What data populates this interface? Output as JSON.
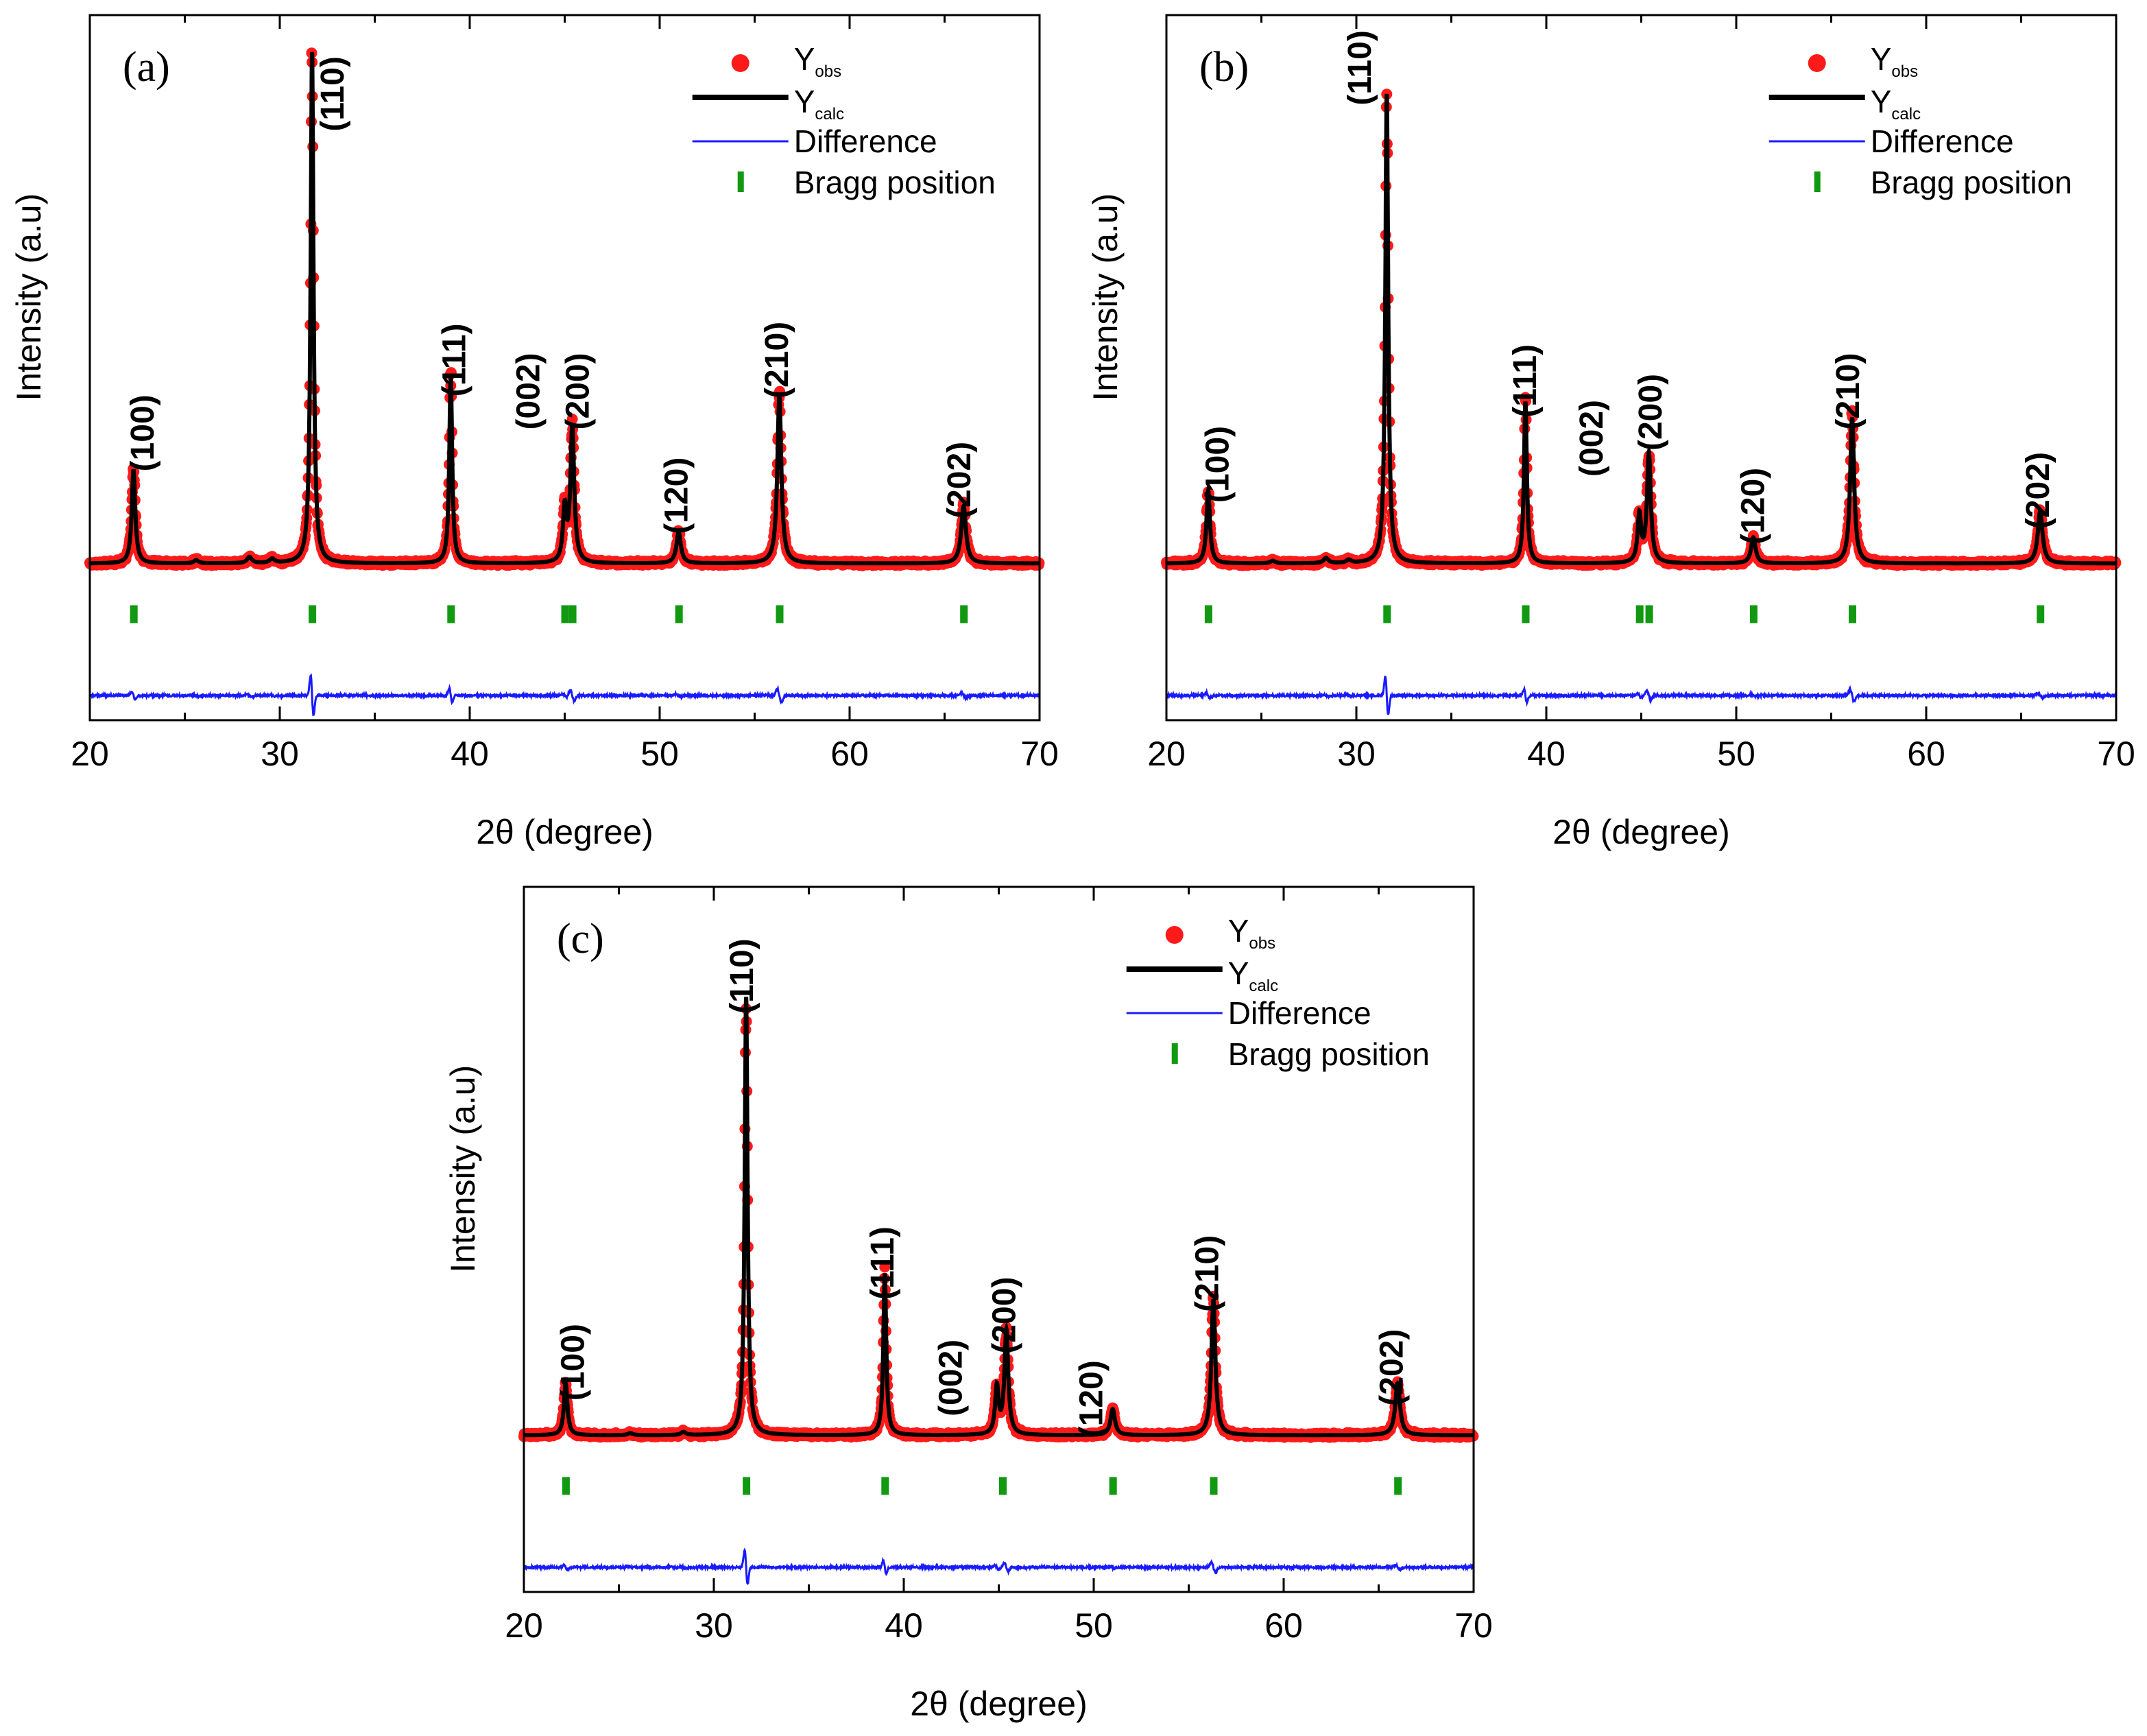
{
  "figure": {
    "x_axis_title": "2θ (degree)",
    "y_axis_title": "Intensity (a.u)",
    "legend": {
      "obs_label_main": "Y",
      "obs_label_sub": "obs",
      "calc_label_main": "Y",
      "calc_label_sub": "calc",
      "difference_label": "Difference",
      "bragg_label": "Bragg position"
    },
    "colors": {
      "observed": "#ff1a1a",
      "calculated": "#000000",
      "difference": "#1a1aff",
      "bragg": "#119911"
    }
  },
  "chart_data": [
    {
      "type": "line",
      "panel_label": "(a)",
      "xlabel": "2θ (degree)",
      "ylabel": "Intensity (a.u)",
      "xlim": [
        20,
        70
      ],
      "xticks": [
        "20",
        "30",
        "40",
        "50",
        "60",
        "70"
      ],
      "series": [
        {
          "name": "Yobs",
          "kind": "scatter",
          "color": "#ff1a1a"
        },
        {
          "name": "Ycalc",
          "kind": "line",
          "color": "#000000"
        },
        {
          "name": "Difference",
          "kind": "line",
          "color": "#1a1aff"
        },
        {
          "name": "Bragg position",
          "kind": "ticks",
          "color": "#119911"
        }
      ],
      "baseline": 0.03,
      "peaks": [
        {
          "label": "(100)",
          "pos": 22.3,
          "height": 0.18,
          "width": 0.22
        },
        {
          "label": "(110)",
          "pos": 31.7,
          "height": 0.98,
          "width": 0.18
        },
        {
          "label": "(111)",
          "pos": 39.0,
          "height": 0.36,
          "width": 0.18
        },
        {
          "label": "(002)",
          "pos": 45.0,
          "height": 0.1,
          "width": 0.22
        },
        {
          "label": "(200)",
          "pos": 45.4,
          "height": 0.26,
          "width": 0.24
        },
        {
          "label": "(120)",
          "pos": 51.0,
          "height": 0.06,
          "width": 0.28
        },
        {
          "label": "(210)",
          "pos": 56.3,
          "height": 0.32,
          "width": 0.25
        },
        {
          "label": "(202)",
          "pos": 66.0,
          "height": 0.11,
          "width": 0.3
        }
      ],
      "minor_peaks": [
        {
          "pos": 25.6,
          "height": 0.006
        },
        {
          "pos": 28.4,
          "height": 0.012
        },
        {
          "pos": 29.6,
          "height": 0.008
        }
      ],
      "bragg": [
        22.3,
        31.7,
        39.0,
        45.0,
        45.4,
        51.0,
        56.3,
        66.0
      ],
      "peak_annotations": [
        {
          "text": "(100)",
          "x": 22.9,
          "y": 0.28
        },
        {
          "text": "(110)",
          "x": 32.9,
          "y": 0.93
        },
        {
          "text": "(111)",
          "x": 39.3,
          "y": 0.42
        },
        {
          "text": "(002)",
          "x": 43.2,
          "y": 0.36
        },
        {
          "text": "(200)",
          "x": 45.8,
          "y": 0.36
        },
        {
          "text": "(120)",
          "x": 51.0,
          "y": 0.16
        },
        {
          "text": "(210)",
          "x": 56.3,
          "y": 0.42
        },
        {
          "text": "(202)",
          "x": 65.9,
          "y": 0.19
        }
      ]
    },
    {
      "type": "line",
      "panel_label": "(b)",
      "xlabel": "2θ (degree)",
      "ylabel": "Intensity (a.u)",
      "xlim": [
        20,
        70
      ],
      "xticks": [
        "20",
        "30",
        "40",
        "50",
        "60",
        "70"
      ],
      "series": [
        {
          "name": "Yobs",
          "kind": "scatter",
          "color": "#ff1a1a"
        },
        {
          "name": "Ycalc",
          "kind": "line",
          "color": "#000000"
        },
        {
          "name": "Difference",
          "kind": "line",
          "color": "#1a1aff"
        },
        {
          "name": "Bragg position",
          "kind": "ticks",
          "color": "#119911"
        }
      ],
      "baseline": 0.03,
      "peaks": [
        {
          "label": "(100)",
          "pos": 22.2,
          "height": 0.14,
          "width": 0.22
        },
        {
          "label": "(110)",
          "pos": 31.6,
          "height": 0.9,
          "width": 0.18
        },
        {
          "label": "(111)",
          "pos": 38.9,
          "height": 0.31,
          "width": 0.18
        },
        {
          "label": "(002)",
          "pos": 44.9,
          "height": 0.09,
          "width": 0.22
        },
        {
          "label": "(200)",
          "pos": 45.4,
          "height": 0.21,
          "width": 0.24
        },
        {
          "label": "(120)",
          "pos": 50.9,
          "height": 0.05,
          "width": 0.28
        },
        {
          "label": "(210)",
          "pos": 56.1,
          "height": 0.28,
          "width": 0.25
        },
        {
          "label": "(202)",
          "pos": 66.0,
          "height": 0.1,
          "width": 0.3
        }
      ],
      "minor_peaks": [
        {
          "pos": 25.6,
          "height": 0.005
        },
        {
          "pos": 28.4,
          "height": 0.01
        },
        {
          "pos": 29.6,
          "height": 0.006
        }
      ],
      "bragg": [
        22.2,
        31.6,
        38.9,
        44.9,
        45.4,
        50.9,
        56.1,
        66.0
      ],
      "peak_annotations": [
        {
          "text": "(100)",
          "x": 22.8,
          "y": 0.22
        },
        {
          "text": "(110)",
          "x": 30.3,
          "y": 0.98
        },
        {
          "text": "(111)",
          "x": 39.0,
          "y": 0.38
        },
        {
          "text": "(002)",
          "x": 42.5,
          "y": 0.27
        },
        {
          "text": "(200)",
          "x": 45.6,
          "y": 0.32
        },
        {
          "text": "(120)",
          "x": 51.0,
          "y": 0.14
        },
        {
          "text": "(210)",
          "x": 56.0,
          "y": 0.36
        },
        {
          "text": "(202)",
          "x": 66.0,
          "y": 0.17
        }
      ]
    },
    {
      "type": "line",
      "panel_label": "(c)",
      "xlabel": "2θ (degree)",
      "ylabel": "Intensity (a.u)",
      "xlim": [
        20,
        70
      ],
      "xticks": [
        "20",
        "30",
        "40",
        "50",
        "60",
        "70"
      ],
      "series": [
        {
          "name": "Yobs",
          "kind": "scatter",
          "color": "#ff1a1a"
        },
        {
          "name": "Ycalc",
          "kind": "line",
          "color": "#000000"
        },
        {
          "name": "Difference",
          "kind": "line",
          "color": "#1a1aff"
        },
        {
          "name": "Bragg position",
          "kind": "ticks",
          "color": "#119911"
        }
      ],
      "baseline": 0.03,
      "peaks": [
        {
          "label": "(100)",
          "pos": 22.2,
          "height": 0.1,
          "width": 0.22
        },
        {
          "label": "(110)",
          "pos": 31.7,
          "height": 0.84,
          "width": 0.18
        },
        {
          "label": "(111)",
          "pos": 39.0,
          "height": 0.31,
          "width": 0.18
        },
        {
          "label": "(002)",
          "pos": 44.9,
          "height": 0.09,
          "width": 0.22
        },
        {
          "label": "(200)",
          "pos": 45.4,
          "height": 0.2,
          "width": 0.24
        },
        {
          "label": "(120)",
          "pos": 51.0,
          "height": 0.05,
          "width": 0.28
        },
        {
          "label": "(210)",
          "pos": 56.3,
          "height": 0.26,
          "width": 0.25
        },
        {
          "label": "(202)",
          "pos": 66.0,
          "height": 0.1,
          "width": 0.3
        }
      ],
      "minor_peaks": [
        {
          "pos": 25.6,
          "height": 0.004
        },
        {
          "pos": 28.4,
          "height": 0.006
        }
      ],
      "bragg": [
        22.2,
        31.7,
        39.0,
        45.2,
        51.0,
        56.3,
        66.0
      ],
      "peak_annotations": [
        {
          "text": "(100)",
          "x": 22.7,
          "y": 0.17
        },
        {
          "text": "(110)",
          "x": 31.6,
          "y": 0.91
        },
        {
          "text": "(111)",
          "x": 39.0,
          "y": 0.36
        },
        {
          "text": "(002)",
          "x": 42.6,
          "y": 0.14
        },
        {
          "text": "(200)",
          "x": 45.4,
          "y": 0.26
        },
        {
          "text": "(120)",
          "x": 50.0,
          "y": 0.1
        },
        {
          "text": "(210)",
          "x": 56.1,
          "y": 0.34
        },
        {
          "text": "(202)",
          "x": 65.8,
          "y": 0.16
        }
      ]
    }
  ]
}
